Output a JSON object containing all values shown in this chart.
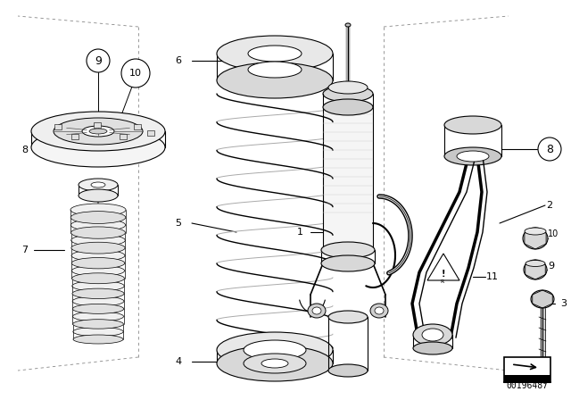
{
  "title": "",
  "background_color": "#ffffff",
  "line_color": "#000000",
  "label_color": "#000000",
  "diagram_number": "00196487",
  "fig_width": 6.4,
  "fig_height": 4.48,
  "dpi": 100
}
